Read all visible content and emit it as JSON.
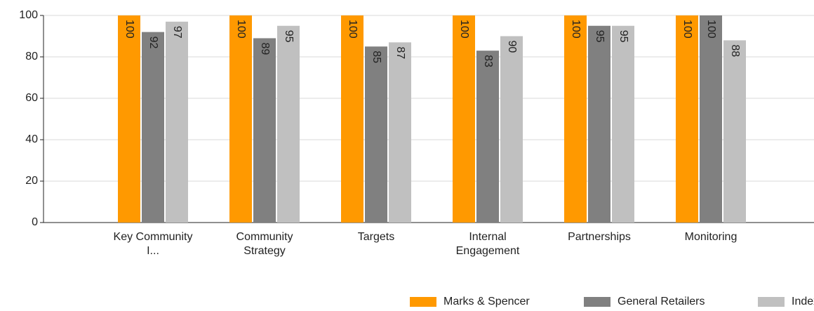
{
  "chart_data": {
    "type": "bar",
    "categories": [
      "Key Community I...",
      "Community Strategy",
      "Targets",
      "Internal Engagement",
      "Partnerships",
      "Monitoring"
    ],
    "series": [
      {
        "name": "Marks & Spencer",
        "color": "#ff9900",
        "values": [
          100,
          100,
          100,
          100,
          100,
          100
        ]
      },
      {
        "name": "General Retailers",
        "color": "#808080",
        "values": [
          92,
          89,
          85,
          83,
          95,
          100
        ]
      },
      {
        "name": "Index",
        "color": "#c0c0c0",
        "values": [
          97,
          95,
          87,
          90,
          95,
          88
        ]
      }
    ],
    "ylim": [
      0,
      100
    ],
    "yticks": [
      0,
      20,
      40,
      60,
      80,
      100
    ],
    "grid": true,
    "legend": "bottom-right"
  }
}
